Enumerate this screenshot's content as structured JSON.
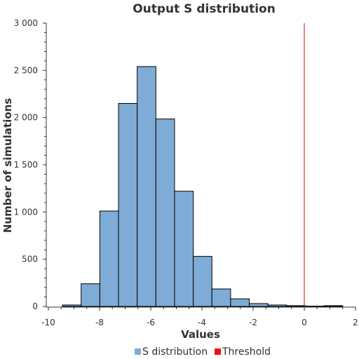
{
  "chart_data": {
    "type": "bar",
    "title": "Output S distribution",
    "xlabel": "Values",
    "ylabel": "Number of simulations",
    "xlim": [
      -10,
      2
    ],
    "ylim": [
      0,
      3000
    ],
    "x_ticks": [
      -10,
      -8,
      -6,
      -4,
      -2,
      0,
      2
    ],
    "x_tick_labels": [
      "-10",
      "-8",
      "-6",
      "-4",
      "-2",
      "0",
      "2"
    ],
    "y_ticks": [
      0,
      500,
      1000,
      1500,
      2000,
      2500,
      3000
    ],
    "y_tick_labels": [
      "0",
      "500",
      "1 000",
      "1 500",
      "2 000",
      "2 500",
      "3 000"
    ],
    "bins": [
      {
        "x0": -9.45,
        "x1": -8.72,
        "value": 15
      },
      {
        "x0": -8.72,
        "x1": -7.99,
        "value": 240
      },
      {
        "x0": -7.99,
        "x1": -7.26,
        "value": 1010
      },
      {
        "x0": -7.26,
        "x1": -6.53,
        "value": 2150
      },
      {
        "x0": -6.53,
        "x1": -5.8,
        "value": 2540
      },
      {
        "x0": -5.8,
        "x1": -5.07,
        "value": 1985
      },
      {
        "x0": -5.07,
        "x1": -4.34,
        "value": 1220
      },
      {
        "x0": -4.34,
        "x1": -3.61,
        "value": 530
      },
      {
        "x0": -3.61,
        "x1": -2.88,
        "value": 185
      },
      {
        "x0": -2.88,
        "x1": -2.15,
        "value": 80
      },
      {
        "x0": -2.15,
        "x1": -1.42,
        "value": 30
      },
      {
        "x0": -1.42,
        "x1": -0.69,
        "value": 15
      },
      {
        "x0": -0.69,
        "x1": 0.04,
        "value": 8
      },
      {
        "x0": 0.04,
        "x1": 0.77,
        "value": 3
      },
      {
        "x0": 0.77,
        "x1": 1.5,
        "value": 8
      }
    ],
    "threshold": 0,
    "series": [
      {
        "name": "S distribution",
        "color": "#7facd6"
      },
      {
        "name": "Threshold",
        "color": "#cc1111"
      }
    ],
    "legend_position": "bottom"
  }
}
